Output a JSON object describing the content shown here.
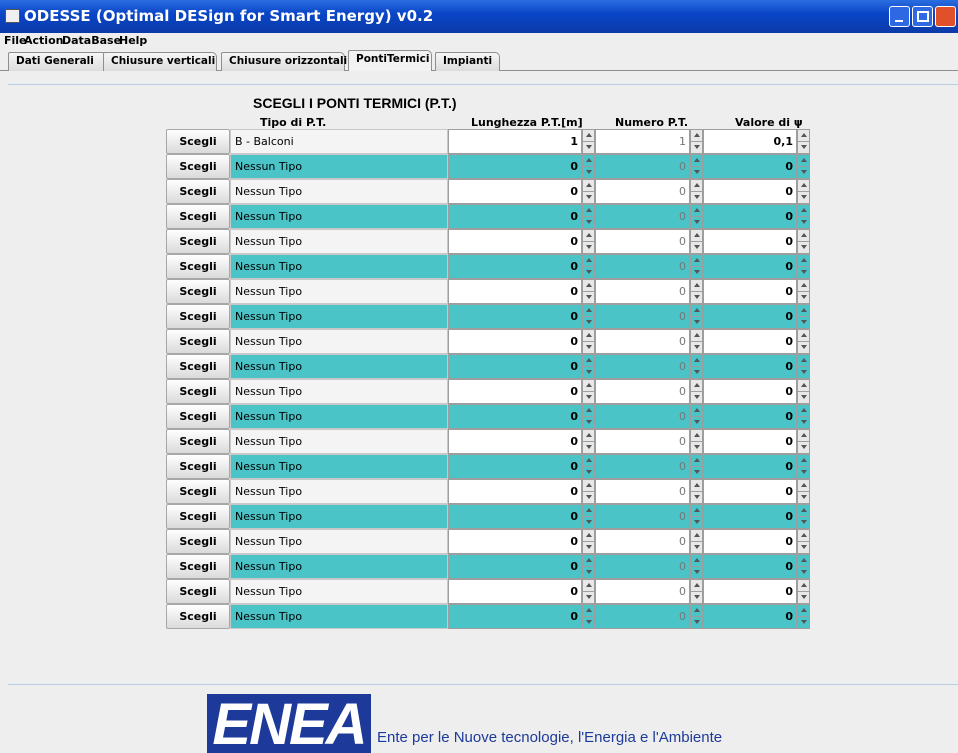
{
  "window": {
    "title": "ODESSE (Optimal DESign for Smart Energy) v0.2"
  },
  "menu": [
    "File",
    "Action",
    "DataBase",
    "Help"
  ],
  "tabs": [
    "Dati Generali",
    "Chiusure verticali",
    "Chiusure orizzontali",
    "PontiTermici",
    "Impianti"
  ],
  "selected_tab": 3,
  "panel": {
    "heading": "SCEGLI I PONTI TERMICI (P.T.)",
    "columns": [
      "Tipo di P.T.",
      "Lunghezza P.T.[m]",
      "Numero P.T.",
      "Valore di ψ"
    ],
    "rows": [
      {
        "button": "Scegli",
        "type": "B - Balconi",
        "length": "1",
        "number": "1",
        "psi": "0,1"
      },
      {
        "button": "Scegli",
        "type": "Nessun Tipo",
        "length": "0",
        "number": "0",
        "psi": "0"
      },
      {
        "button": "Scegli",
        "type": "Nessun Tipo",
        "length": "0",
        "number": "0",
        "psi": "0"
      },
      {
        "button": "Scegli",
        "type": "Nessun Tipo",
        "length": "0",
        "number": "0",
        "psi": "0"
      },
      {
        "button": "Scegli",
        "type": "Nessun Tipo",
        "length": "0",
        "number": "0",
        "psi": "0"
      },
      {
        "button": "Scegli",
        "type": "Nessun Tipo",
        "length": "0",
        "number": "0",
        "psi": "0"
      },
      {
        "button": "Scegli",
        "type": "Nessun Tipo",
        "length": "0",
        "number": "0",
        "psi": "0"
      },
      {
        "button": "Scegli",
        "type": "Nessun Tipo",
        "length": "0",
        "number": "0",
        "psi": "0"
      },
      {
        "button": "Scegli",
        "type": "Nessun Tipo",
        "length": "0",
        "number": "0",
        "psi": "0"
      },
      {
        "button": "Scegli",
        "type": "Nessun Tipo",
        "length": "0",
        "number": "0",
        "psi": "0"
      },
      {
        "button": "Scegli",
        "type": "Nessun Tipo",
        "length": "0",
        "number": "0",
        "psi": "0"
      },
      {
        "button": "Scegli",
        "type": "Nessun Tipo",
        "length": "0",
        "number": "0",
        "psi": "0"
      },
      {
        "button": "Scegli",
        "type": "Nessun Tipo",
        "length": "0",
        "number": "0",
        "psi": "0"
      },
      {
        "button": "Scegli",
        "type": "Nessun Tipo",
        "length": "0",
        "number": "0",
        "psi": "0"
      },
      {
        "button": "Scegli",
        "type": "Nessun Tipo",
        "length": "0",
        "number": "0",
        "psi": "0"
      },
      {
        "button": "Scegli",
        "type": "Nessun Tipo",
        "length": "0",
        "number": "0",
        "psi": "0"
      },
      {
        "button": "Scegli",
        "type": "Nessun Tipo",
        "length": "0",
        "number": "0",
        "psi": "0"
      },
      {
        "button": "Scegli",
        "type": "Nessun Tipo",
        "length": "0",
        "number": "0",
        "psi": "0"
      },
      {
        "button": "Scegli",
        "type": "Nessun Tipo",
        "length": "0",
        "number": "0",
        "psi": "0"
      },
      {
        "button": "Scegli",
        "type": "Nessun Tipo",
        "length": "0",
        "number": "0",
        "psi": "0"
      }
    ]
  },
  "footer": {
    "logo": "ENEA",
    "text": "Ente per le Nuove tecnologie, l'Energia e l'Ambiente"
  }
}
